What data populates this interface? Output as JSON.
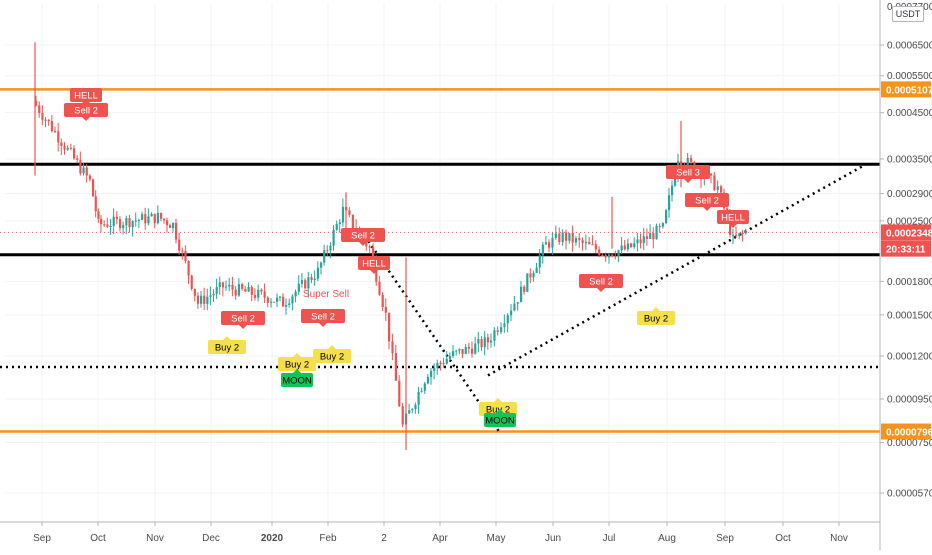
{
  "colors": {
    "up": "#26a69a",
    "down": "#ef5350",
    "orange": "#f7931a",
    "black": "#000000",
    "sell": "#ef5350",
    "buy": "#f5e04b",
    "moon": "#12c457",
    "grid": "#f0f3fa",
    "axis_text": "#4a4a4a"
  },
  "currency_label": "USDT",
  "chart_data": {
    "type": "candlestick",
    "y_scale": "log",
    "ylim": [
      5e-05,
      0.0007
    ],
    "x_ticks": [
      "Sep",
      "Oct",
      "Nov",
      "Dec",
      "2020",
      "Feb",
      "2",
      "Apr",
      "May",
      "Jun",
      "Jul",
      "Aug",
      "Sep",
      "Oct",
      "Nov"
    ],
    "y_ticks": [
      5.7e-05,
      7.5e-05,
      9.5e-05,
      0.00012,
      0.00015,
      0.00018,
      0.00025,
      0.00029,
      0.00035,
      0.00045,
      0.00055,
      0.00065
    ],
    "y_tick_labels": [
      "0.0000570",
      "0.0000750",
      "0.0000950",
      "0.0001200",
      "0.0001500",
      "0.0001800",
      "0.0002500",
      "0.0002900",
      "0.0003500",
      "0.0004500",
      "0.0005500",
      "0.0006500"
    ],
    "top_partial_tick": "0.0007700",
    "price_tags": [
      {
        "value": 0.0005107,
        "label": "0.0005107",
        "color": "#f7931a"
      },
      {
        "value": 0.0002348,
        "label": "0.0002348",
        "color": "#ef5350"
      },
      {
        "value": 0.000215,
        "label": "20:33:11",
        "color": "#ef5350"
      },
      {
        "value": 7.96e-05,
        "label": "0.0000796",
        "color": "#f7931a"
      }
    ],
    "horizontal_levels": [
      {
        "value": 0.0005107,
        "color": "orange"
      },
      {
        "value": 0.00034,
        "color": "black"
      },
      {
        "value": 0.000208,
        "color": "black"
      },
      {
        "value": 7.96e-05,
        "color": "orange"
      }
    ],
    "dotted_level": 0.000113,
    "current_price": 0.0002348,
    "price_path": [
      [
        "Sep",
        0.00048
      ],
      [
        "Oct",
        0.00031
      ],
      [
        "Oct",
        0.000245
      ],
      [
        "Nov",
        0.000255
      ],
      [
        "Nov",
        0.000245
      ],
      [
        "Dec",
        0.00016
      ],
      [
        "Dec",
        0.000175
      ],
      [
        "2020",
        0.000165
      ],
      [
        "2020",
        0.00016
      ],
      [
        "Feb",
        0.00019
      ],
      [
        "Feb",
        0.000265
      ],
      [
        "2",
        0.000215
      ],
      [
        "2",
        0.00015
      ],
      [
        "2",
        8.2e-05
      ],
      [
        "Apr",
        0.00011
      ],
      [
        "Apr",
        0.00012
      ],
      [
        "May",
        0.00013
      ],
      [
        "May",
        0.000165
      ],
      [
        "Jun",
        0.00022
      ],
      [
        "Jun",
        0.00023
      ],
      [
        "Jul",
        0.00021
      ],
      [
        "Jul",
        0.000215
      ],
      [
        "Aug",
        0.00024
      ],
      [
        "Aug",
        0.000355
      ],
      [
        "Aug",
        0.00033
      ],
      [
        "Sep",
        0.0003
      ],
      [
        "Sep",
        0.000225
      ],
      [
        "Sep",
        0.000235
      ]
    ],
    "signals": [
      {
        "text": "HELL",
        "kind": "sell",
        "x": "Oct",
        "y": 0.00054
      },
      {
        "text": "Sell 2",
        "kind": "sell",
        "x": "Oct",
        "y": 0.00051
      },
      {
        "text": "Sell 2",
        "kind": "sell",
        "x": "Dec",
        "y": 0.000187
      },
      {
        "text": "Buy 2",
        "kind": "buy",
        "x": "Dec",
        "y": 0.000165
      },
      {
        "text": "Sell 2",
        "kind": "sell",
        "x": "Feb",
        "y": 0.000188
      },
      {
        "text": "Buy 2",
        "kind": "buy",
        "x": "2020",
        "y": 0.000152
      },
      {
        "text": "MOON",
        "kind": "moon",
        "x": "2020",
        "y": 0.00014
      },
      {
        "text": "Buy 2",
        "kind": "buy",
        "x": "Feb",
        "y": 0.000158
      },
      {
        "text": "Sell 2",
        "kind": "sell",
        "x": "Feb",
        "y": 0.00028
      },
      {
        "text": "HELL",
        "kind": "sell",
        "x": "2",
        "y": 0.000249
      },
      {
        "text": "Buy 2",
        "kind": "buy",
        "x": "May",
        "y": 0.00011
      },
      {
        "text": "MOON",
        "kind": "moon",
        "x": "May",
        "y": 0.000102
      },
      {
        "text": "Sell 2",
        "kind": "sell",
        "x": "Jul",
        "y": 0.000226
      },
      {
        "text": "Buy 2",
        "kind": "buy",
        "x": "Jul",
        "y": 0.000186
      },
      {
        "text": "Sell 3",
        "kind": "sell",
        "x": "Aug",
        "y": 0.000382
      },
      {
        "text": "Sell 2",
        "kind": "sell",
        "x": "Aug",
        "y": 0.000333
      },
      {
        "text": "HELL",
        "kind": "sell",
        "x": "Sep",
        "y": 0.000305
      }
    ],
    "annotation": {
      "text": "Super Sell",
      "x": "Feb",
      "y": 0.000219
    }
  }
}
